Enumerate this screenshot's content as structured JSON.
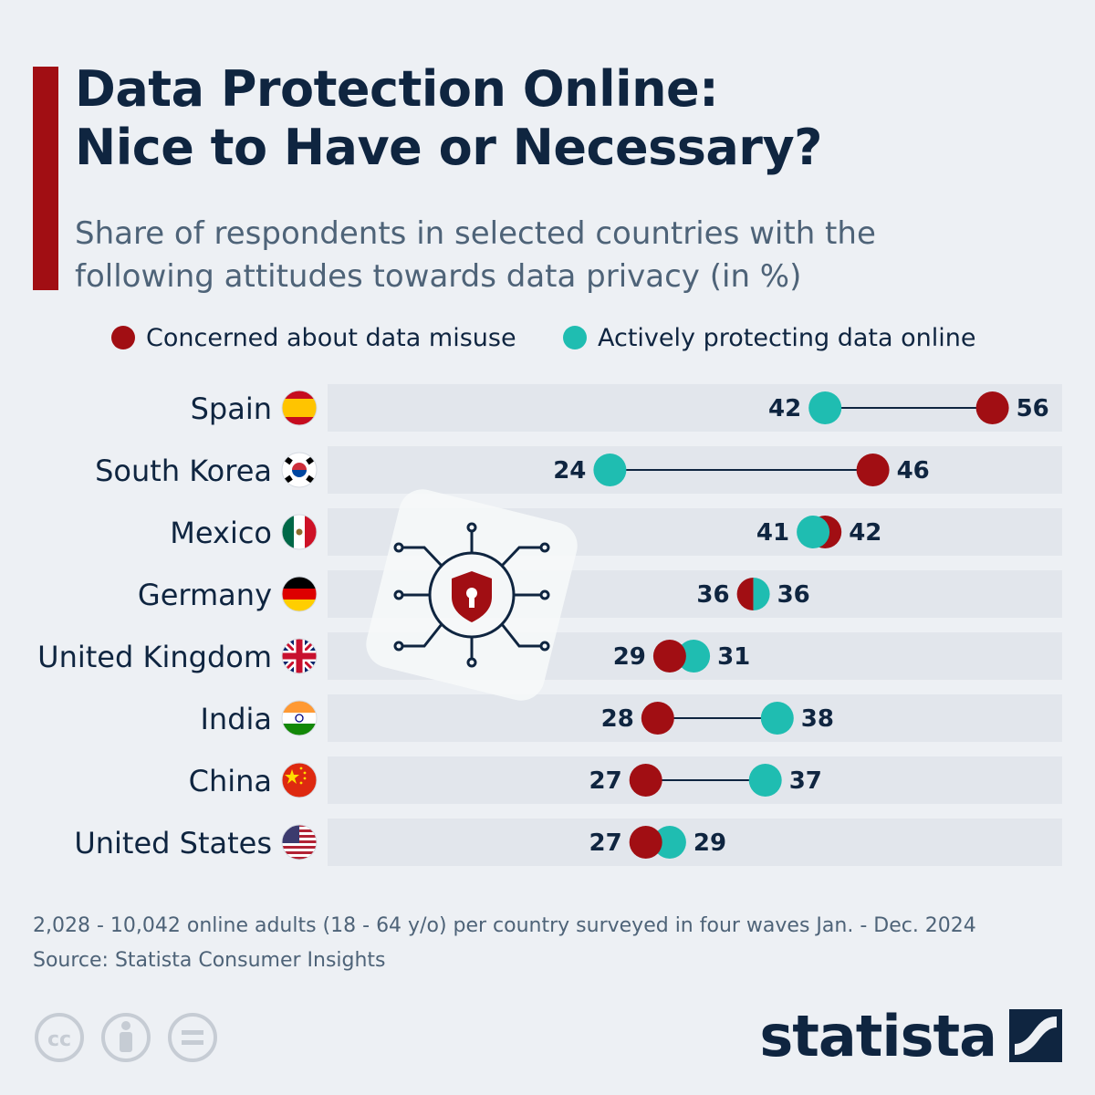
{
  "header": {
    "title_line1": "Data Protection Online:",
    "title_line2": "Nice to Have or Necessary?",
    "subtitle_line1": "Share of respondents in selected countries with the",
    "subtitle_line2": "following attitudes towards data privacy (in %)"
  },
  "legend": [
    {
      "label": "Concerned about data misuse",
      "color": "#a10e13"
    },
    {
      "label": "Actively protecting data online",
      "color": "#1fbdb1"
    }
  ],
  "chart_data": {
    "type": "dumbbell",
    "title": "Data Protection Online: Nice to Have or Necessary?",
    "subtitle": "Share of respondents in selected countries with the following attitudes towards data privacy (in %)",
    "categories": [
      "Spain",
      "South Korea",
      "Mexico",
      "Germany",
      "United Kingdom",
      "India",
      "China",
      "United States"
    ],
    "series": [
      {
        "name": "Concerned about data misuse",
        "color": "#a10e13",
        "values": [
          56,
          46,
          42,
          36,
          29,
          28,
          27,
          27
        ]
      },
      {
        "name": "Actively protecting data online",
        "color": "#1fbdb1",
        "values": [
          42,
          24,
          41,
          36,
          31,
          38,
          37,
          29
        ]
      }
    ],
    "flags": [
      "spain-flag",
      "south-korea-flag",
      "mexico-flag",
      "germany-flag",
      "united-kingdom-flag",
      "india-flag",
      "china-flag",
      "united-states-flag"
    ],
    "grid": false,
    "legend_position": "top"
  },
  "footer": {
    "note": "2,028 - 10,042 online adults (18 - 64 y/o) per country surveyed in four waves Jan. - Dec. 2024",
    "source": "Source: Statista Consumer Insights",
    "brand": "statista"
  },
  "colors": {
    "background": "#edf0f4",
    "accent": "#a10e13",
    "navy": "#0f2540",
    "row_band": "#e2e6ec"
  }
}
